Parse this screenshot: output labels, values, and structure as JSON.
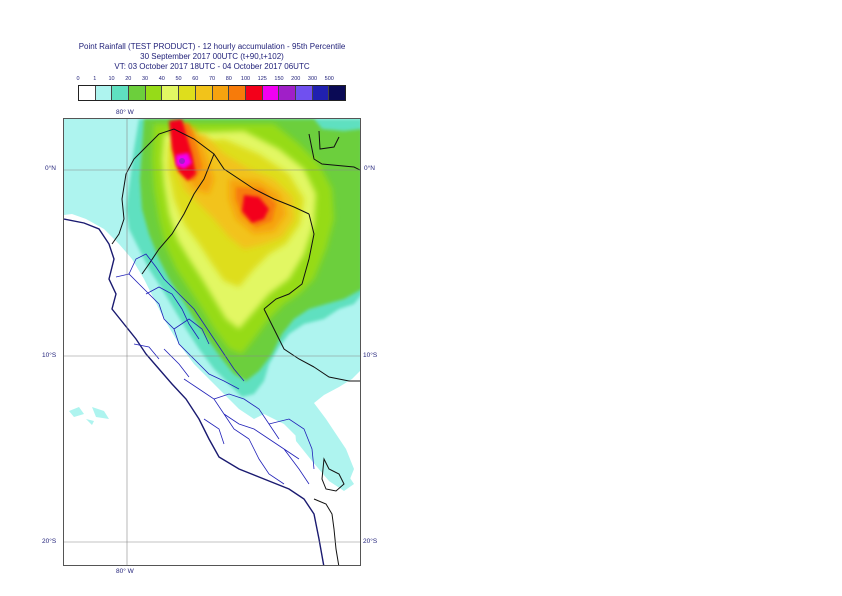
{
  "header": {
    "title_line1": "Point Rainfall (TEST PRODUCT) - 12 hourly accumulation - 95th Percentile",
    "title_line2": "30 September 2017 00UTC (t+90,t+102)",
    "title_line3": "VT: 03 October 2017 18UTC - 04 October 2017 06UTC"
  },
  "legend": {
    "ticks": [
      "0",
      "1",
      "10",
      "20",
      "30",
      "40",
      "50",
      "60",
      "70",
      "80",
      "100",
      "125",
      "150",
      "200",
      "300",
      "500"
    ],
    "colors": [
      "#ffffff",
      "#aef4ef",
      "#5fe0c0",
      "#6ccf3c",
      "#96db18",
      "#e2f763",
      "#dede1c",
      "#f2c31a",
      "#f6a30f",
      "#f77b0a",
      "#f3001a",
      "#f200f2",
      "#a01fc8",
      "#7050f0",
      "#2020b0",
      "#0a0a55"
    ]
  },
  "map": {
    "lon_label_top": "80° W",
    "lon_label_bottom": "80° W",
    "lat_labels": [
      {
        "left": "0°N",
        "right": "0°N"
      },
      {
        "left": "10°S",
        "right": "10°S"
      },
      {
        "left": "20°S",
        "right": "20°S"
      }
    ]
  }
}
